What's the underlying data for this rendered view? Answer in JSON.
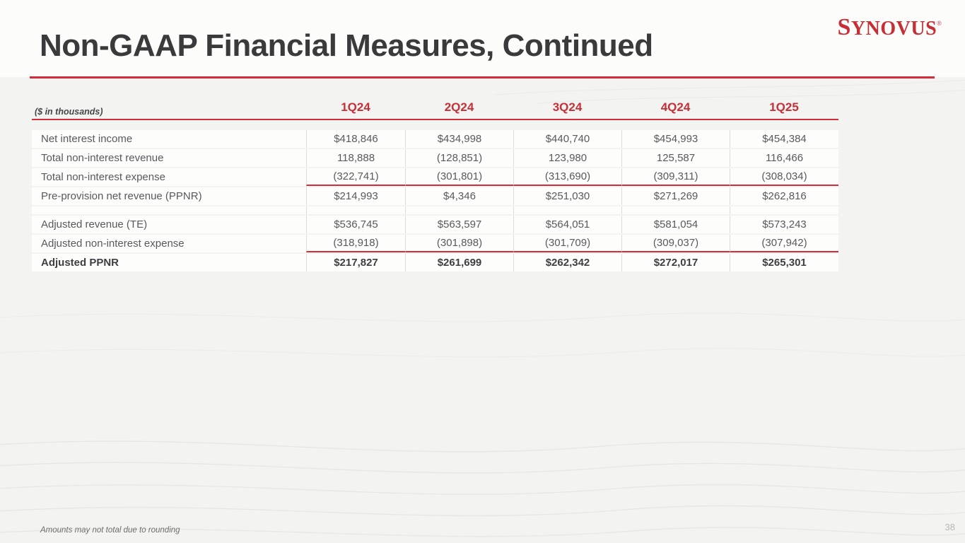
{
  "slide": {
    "title": "Non-GAAP Financial Measures, Continued",
    "logo": {
      "text": "SYNOVUS",
      "registered": "®"
    },
    "footnote": "Amounts may not total due to rounding",
    "page_number": "38"
  },
  "table": {
    "unit_label": "($ in thousands)",
    "columns": [
      "1Q24",
      "2Q24",
      "3Q24",
      "4Q24",
      "1Q25"
    ],
    "rows": [
      {
        "label": "Net interest income",
        "values": [
          "$418,846",
          "$434,998",
          "$440,740",
          "$454,993",
          "$454,384"
        ],
        "bold": false,
        "red_underline": false
      },
      {
        "label": "Total non-interest revenue",
        "values": [
          "118,888",
          "(128,851)",
          "123,980",
          "125,587",
          "116,466"
        ],
        "bold": false,
        "red_underline": false
      },
      {
        "label": "Total non-interest expense",
        "values": [
          "(322,741)",
          "(301,801)",
          "(313,690)",
          "(309,311)",
          "(308,034)"
        ],
        "bold": false,
        "red_underline": true
      },
      {
        "label": "Pre-provision net revenue (PPNR)",
        "values": [
          "$214,993",
          "$4,346",
          "$251,030",
          "$271,269",
          "$262,816"
        ],
        "bold": false,
        "red_underline": false
      },
      {
        "spacer": true
      },
      {
        "label": "Adjusted revenue (TE)",
        "values": [
          "$536,745",
          "$563,597",
          "$564,051",
          "$581,054",
          "$573,243"
        ],
        "bold": false,
        "red_underline": false
      },
      {
        "label": "Adjusted non-interest expense",
        "values": [
          "(318,918)",
          "(301,898)",
          "(301,709)",
          "(309,037)",
          "(307,942)"
        ],
        "bold": false,
        "red_underline": true
      },
      {
        "label": "Adjusted PPNR",
        "values": [
          "$217,827",
          "$261,699",
          "$262,342",
          "$272,017",
          "$265,301"
        ],
        "bold": true,
        "red_underline": false
      }
    ]
  },
  "colors": {
    "brand_red": "#C62F36",
    "rule_red": "#D12D3B",
    "title_ink": "#3A3A3C",
    "body_ink": "#58595D",
    "background": "#F3F3F1"
  }
}
